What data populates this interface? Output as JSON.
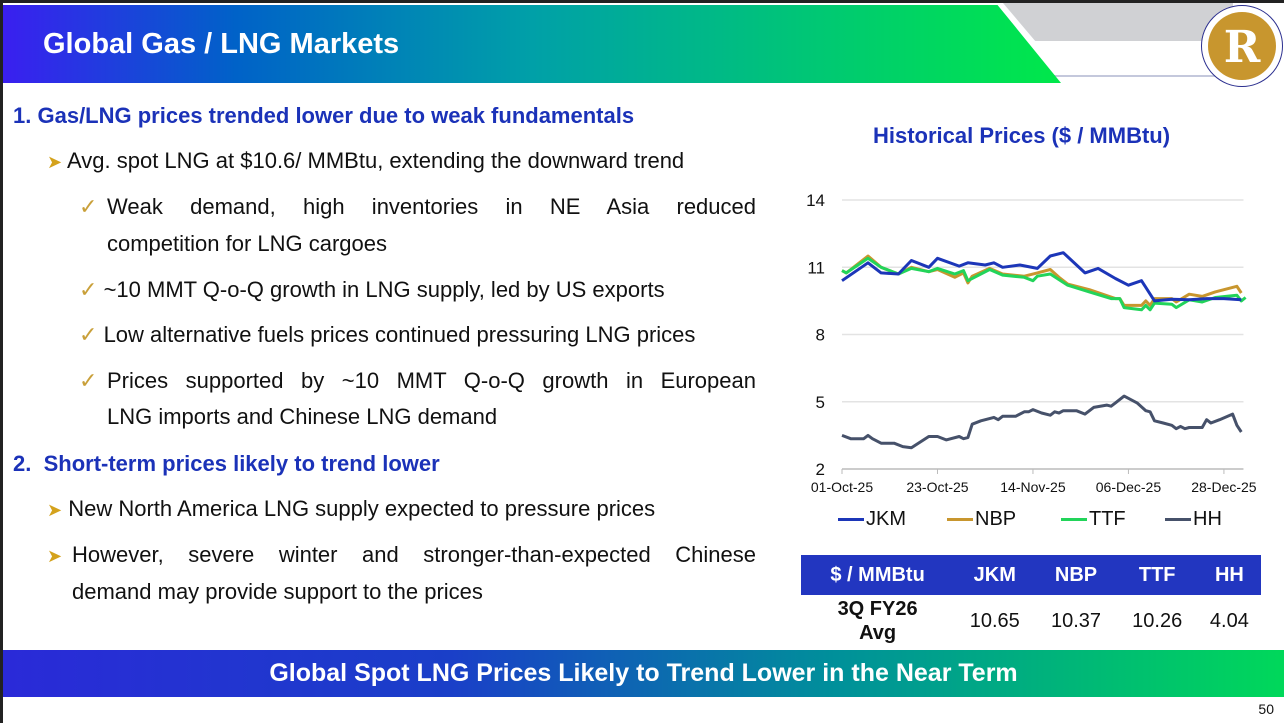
{
  "header": {
    "title": "Global Gas / LNG Markets"
  },
  "content": {
    "section1": {
      "num": "1.",
      "heading": "Gas/LNG prices trended lower due to weak fundamentals"
    },
    "s1_bullet": "Avg. spot LNG at $10.6/ MMBtu, extending the downward trend",
    "s1_checks": [
      {
        "line1": "Weak demand, high inventories in NE Asia reduced",
        "line2": "competition for LNG cargoes"
      },
      {
        "line1": "~10 MMT Q-o-Q growth in LNG supply, led by US exports"
      },
      {
        "line1": "Low alternative fuels prices continued pressuring LNG prices"
      },
      {
        "line1": "Prices supported by ~10 MMT Q-o-Q growth in European",
        "line2": "LNG imports and Chinese LNG demand"
      }
    ],
    "section2": {
      "num": "2.",
      "heading": "Short-term prices likely to trend lower"
    },
    "s2_bullets": [
      {
        "line1": "New North America LNG supply expected to pressure prices"
      },
      {
        "line1": "However, severe winter and stronger-than-expected Chinese",
        "line2": "demand may provide support to the prices"
      }
    ]
  },
  "chart_data": {
    "type": "line",
    "title": "Historical Prices ($ / MMBtu)",
    "xlabel": "",
    "ylabel": "",
    "ylim": [
      2,
      14
    ],
    "yticks": [
      "2",
      "5",
      "8",
      "11",
      "14"
    ],
    "xticks": [
      {
        "day": 0,
        "label": "01-Oct-25"
      },
      {
        "day": 22,
        "label": "23-Oct-25"
      },
      {
        "day": 44,
        "label": "14-Nov-25"
      },
      {
        "day": 66,
        "label": "06-Dec-25"
      },
      {
        "day": 88,
        "label": "28-Dec-25"
      }
    ],
    "x_unit": "days since 01-Oct-25",
    "legend_position": "bottom",
    "series": [
      {
        "name": "JKM",
        "color": "#1c36b8",
        "points": [
          [
            0,
            10.4
          ],
          [
            6,
            11.2
          ],
          [
            9,
            10.75
          ],
          [
            13,
            10.7
          ],
          [
            16,
            11.3
          ],
          [
            20,
            11.0
          ],
          [
            22,
            11.4
          ],
          [
            27,
            11.05
          ],
          [
            29,
            11.2
          ],
          [
            33,
            11.1
          ],
          [
            35,
            11.2
          ],
          [
            37,
            11.0
          ],
          [
            41,
            11.1
          ],
          [
            45,
            10.95
          ],
          [
            48,
            11.5
          ],
          [
            51,
            11.65
          ],
          [
            56,
            10.75
          ],
          [
            59,
            10.95
          ],
          [
            63,
            10.5
          ],
          [
            66,
            10.2
          ],
          [
            69,
            10.4
          ],
          [
            72,
            9.5
          ],
          [
            76,
            9.57
          ],
          [
            80,
            9.55
          ],
          [
            84,
            9.6
          ],
          [
            88,
            9.6
          ],
          [
            92,
            9.55
          ]
        ]
      },
      {
        "name": "NBP",
        "color": "#c8962e",
        "points": [
          [
            0,
            10.85
          ],
          [
            1,
            10.75
          ],
          [
            6,
            11.5
          ],
          [
            9,
            11.0
          ],
          [
            13,
            10.7
          ],
          [
            16,
            11.0
          ],
          [
            20,
            10.8
          ],
          [
            22,
            10.9
          ],
          [
            26,
            10.55
          ],
          [
            28,
            10.75
          ],
          [
            29,
            10.3
          ],
          [
            30,
            10.6
          ],
          [
            34,
            10.95
          ],
          [
            37,
            10.7
          ],
          [
            42,
            10.6
          ],
          [
            45,
            10.75
          ],
          [
            48,
            10.9
          ],
          [
            50,
            10.55
          ],
          [
            52,
            10.25
          ],
          [
            57,
            10.0
          ],
          [
            63,
            9.6
          ],
          [
            64,
            9.6
          ],
          [
            65,
            9.3
          ],
          [
            69,
            9.3
          ],
          [
            70,
            9.5
          ],
          [
            71,
            9.3
          ],
          [
            72,
            9.6
          ],
          [
            76,
            9.6
          ],
          [
            77,
            9.45
          ],
          [
            80,
            9.8
          ],
          [
            83,
            9.7
          ],
          [
            86,
            9.9
          ],
          [
            91,
            10.15
          ],
          [
            92,
            9.85
          ]
        ]
      },
      {
        "name": "TTF",
        "color": "#22d45a",
        "points": [
          [
            0,
            10.85
          ],
          [
            1,
            10.75
          ],
          [
            6,
            11.4
          ],
          [
            9,
            11.0
          ],
          [
            13,
            10.7
          ],
          [
            16,
            10.95
          ],
          [
            20,
            10.8
          ],
          [
            22,
            10.95
          ],
          [
            26,
            10.7
          ],
          [
            28,
            10.85
          ],
          [
            29,
            10.4
          ],
          [
            34,
            10.9
          ],
          [
            37,
            10.65
          ],
          [
            42,
            10.55
          ],
          [
            44,
            10.4
          ],
          [
            45,
            10.6
          ],
          [
            48,
            10.7
          ],
          [
            50,
            10.45
          ],
          [
            52,
            10.2
          ],
          [
            57,
            9.9
          ],
          [
            62,
            9.6
          ],
          [
            64,
            9.6
          ],
          [
            65,
            9.2
          ],
          [
            69,
            9.1
          ],
          [
            70,
            9.3
          ],
          [
            71,
            9.1
          ],
          [
            72,
            9.4
          ],
          [
            76,
            9.35
          ],
          [
            77,
            9.2
          ],
          [
            80,
            9.55
          ],
          [
            83,
            9.45
          ],
          [
            86,
            9.65
          ],
          [
            91,
            9.75
          ],
          [
            92,
            9.5
          ],
          [
            93,
            9.65
          ]
        ]
      },
      {
        "name": "HH",
        "color": "#46516a",
        "points": [
          [
            0,
            3.5
          ],
          [
            2,
            3.35
          ],
          [
            5,
            3.35
          ],
          [
            6,
            3.5
          ],
          [
            7,
            3.35
          ],
          [
            9,
            3.15
          ],
          [
            12,
            3.15
          ],
          [
            14,
            3.0
          ],
          [
            16,
            2.95
          ],
          [
            18,
            3.2
          ],
          [
            20,
            3.45
          ],
          [
            22,
            3.45
          ],
          [
            24,
            3.3
          ],
          [
            27,
            3.45
          ],
          [
            28,
            3.35
          ],
          [
            29,
            3.4
          ],
          [
            30,
            4.0
          ],
          [
            32,
            4.15
          ],
          [
            35,
            4.3
          ],
          [
            36,
            4.2
          ],
          [
            37,
            4.35
          ],
          [
            40,
            4.35
          ],
          [
            42,
            4.55
          ],
          [
            43,
            4.55
          ],
          [
            44,
            4.65
          ],
          [
            46,
            4.5
          ],
          [
            48,
            4.4
          ],
          [
            49,
            4.55
          ],
          [
            50,
            4.5
          ],
          [
            51,
            4.6
          ],
          [
            54,
            4.6
          ],
          [
            56,
            4.45
          ],
          [
            58,
            4.75
          ],
          [
            61,
            4.85
          ],
          [
            62,
            4.8
          ],
          [
            63,
            4.95
          ],
          [
            65,
            5.25
          ],
          [
            68,
            4.95
          ],
          [
            70,
            4.6
          ],
          [
            71,
            4.55
          ],
          [
            72,
            4.15
          ],
          [
            74,
            4.05
          ],
          [
            76,
            3.95
          ],
          [
            77,
            3.8
          ],
          [
            78,
            3.9
          ],
          [
            79,
            3.8
          ],
          [
            80,
            3.85
          ],
          [
            83,
            3.85
          ],
          [
            84,
            4.2
          ],
          [
            85,
            4.05
          ],
          [
            87,
            4.2
          ],
          [
            90,
            4.45
          ],
          [
            91,
            3.95
          ],
          [
            92,
            3.65
          ]
        ]
      }
    ]
  },
  "table": {
    "headers": [
      "$ / MMBtu",
      "JKM",
      "NBP",
      "TTF",
      "HH"
    ],
    "row_label_1": "3Q FY26",
    "row_label_2": "Avg",
    "values": [
      "10.65",
      "10.37",
      "10.26",
      "4.04"
    ]
  },
  "banner": "Global Spot LNG Prices Likely to Trend Lower in the Near Term",
  "page_number": "50"
}
